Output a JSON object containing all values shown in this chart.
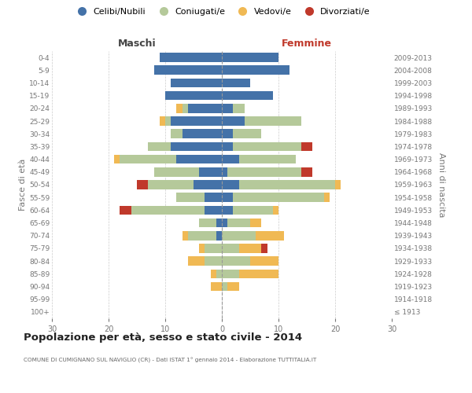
{
  "age_groups": [
    "100+",
    "95-99",
    "90-94",
    "85-89",
    "80-84",
    "75-79",
    "70-74",
    "65-69",
    "60-64",
    "55-59",
    "50-54",
    "45-49",
    "40-44",
    "35-39",
    "30-34",
    "25-29",
    "20-24",
    "15-19",
    "10-14",
    "5-9",
    "0-4"
  ],
  "birth_years": [
    "≤ 1913",
    "1914-1918",
    "1919-1923",
    "1924-1928",
    "1929-1933",
    "1934-1938",
    "1939-1943",
    "1944-1948",
    "1949-1953",
    "1954-1958",
    "1959-1963",
    "1964-1968",
    "1969-1973",
    "1974-1978",
    "1979-1983",
    "1984-1988",
    "1989-1993",
    "1994-1998",
    "1999-2003",
    "2004-2008",
    "2009-2013"
  ],
  "maschi_celibe": [
    0,
    0,
    0,
    0,
    0,
    0,
    1,
    1,
    3,
    3,
    5,
    4,
    8,
    9,
    7,
    9,
    6,
    10,
    9,
    12,
    11
  ],
  "maschi_coniugato": [
    0,
    0,
    0,
    1,
    3,
    3,
    5,
    3,
    13,
    5,
    8,
    8,
    10,
    4,
    2,
    1,
    1,
    0,
    0,
    0,
    0
  ],
  "maschi_vedovo": [
    0,
    0,
    2,
    1,
    3,
    1,
    1,
    0,
    0,
    0,
    0,
    0,
    1,
    0,
    0,
    1,
    1,
    0,
    0,
    0,
    0
  ],
  "maschi_divorziato": [
    0,
    0,
    0,
    0,
    0,
    0,
    0,
    0,
    2,
    0,
    2,
    0,
    0,
    0,
    0,
    0,
    0,
    0,
    0,
    0,
    0
  ],
  "femmine_nubile": [
    0,
    0,
    0,
    0,
    0,
    0,
    0,
    1,
    2,
    2,
    3,
    1,
    3,
    2,
    2,
    4,
    2,
    9,
    5,
    12,
    10
  ],
  "femmine_coniugata": [
    0,
    0,
    1,
    3,
    5,
    3,
    6,
    4,
    7,
    16,
    17,
    13,
    10,
    12,
    5,
    10,
    2,
    0,
    0,
    0,
    0
  ],
  "femmine_vedova": [
    0,
    0,
    2,
    7,
    5,
    4,
    5,
    2,
    1,
    1,
    1,
    0,
    0,
    0,
    0,
    0,
    0,
    0,
    0,
    0,
    0
  ],
  "femmine_divorziata": [
    0,
    0,
    0,
    0,
    0,
    1,
    0,
    0,
    0,
    0,
    0,
    2,
    0,
    2,
    0,
    0,
    0,
    0,
    0,
    0,
    0
  ],
  "color_celibe": "#4472a8",
  "color_coniugato": "#b5c99a",
  "color_vedovo": "#f0b954",
  "color_divorziato": "#c0392b",
  "title": "Popolazione per età, sesso e stato civile - 2014",
  "subtitle": "COMUNE DI CUMIGNANO SUL NAVIGLIO (CR) - Dati ISTAT 1° gennaio 2014 - Elaborazione TUTTITALIA.IT",
  "label_maschi": "Maschi",
  "label_femmine": "Femmine",
  "ylabel_left": "Fasce di età",
  "ylabel_right": "Anni di nascita",
  "legend_labels": [
    "Celibi/Nubili",
    "Coniugati/e",
    "Vedovi/e",
    "Divorziati/e"
  ],
  "xlim": 30,
  "bg_color": "#ffffff",
  "grid_color": "#cccccc",
  "tick_color": "#777777"
}
